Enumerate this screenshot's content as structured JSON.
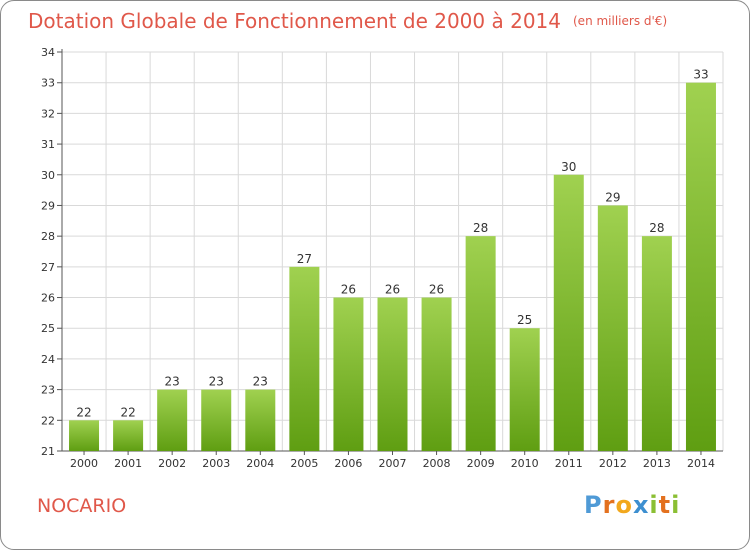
{
  "header": {
    "title": "Dotation Globale de Fonctionnement de 2000 à 2014",
    "subtitle": "(en milliers d'€)"
  },
  "place_name": "NOCARIO",
  "logo": {
    "text": "Proxiti",
    "colors": {
      "P": "#4f9ad6",
      "r": "#e3711f",
      "o": "#f2a81d",
      "x": "#3d8fd0",
      "i": "#8bbf34",
      "t": "#e3711f"
    }
  },
  "colors": {
    "bar_top": "#a0d150",
    "bar_bottom": "#5f9e12",
    "title": "#e0584a",
    "grid": "#d9d9d9"
  },
  "chart_data": {
    "type": "bar",
    "title": "Dotation Globale de Fonctionnement de 2000 à 2014",
    "subtitle": "(en milliers d'€)",
    "categories": [
      "2000",
      "2001",
      "2002",
      "2003",
      "2004",
      "2005",
      "2006",
      "2007",
      "2008",
      "2009",
      "2010",
      "2011",
      "2012",
      "2013",
      "2014"
    ],
    "values": [
      22,
      22,
      23,
      23,
      23,
      27,
      26,
      26,
      26,
      28,
      25,
      30,
      29,
      28,
      33
    ],
    "xlabel": "",
    "ylabel": "",
    "ylim": [
      21,
      34
    ],
    "yticks": [
      21,
      22,
      23,
      24,
      25,
      26,
      27,
      28,
      29,
      30,
      31,
      32,
      33,
      34
    ],
    "grid": true,
    "data_labels": true
  }
}
